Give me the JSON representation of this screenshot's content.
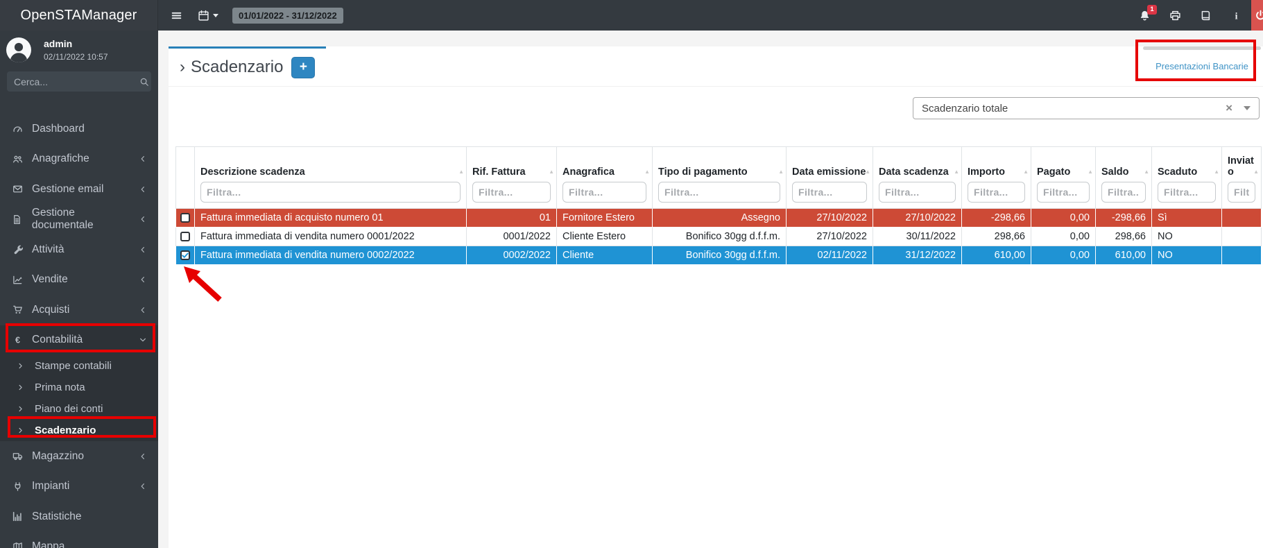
{
  "navbar": {
    "brand": "OpenSTAManager",
    "date_range": "01/01/2022 - 31/12/2022",
    "notifications_badge": "1"
  },
  "sidebar": {
    "user_name": "admin",
    "user_datetime": "02/11/2022 10:57",
    "search_placeholder": "Cerca...",
    "items": [
      {
        "id": "dashboard",
        "label": "Dashboard",
        "icon": "tachometer-icon"
      },
      {
        "id": "anagrafiche",
        "label": "Anagrafiche",
        "icon": "users-icon",
        "collapsible": true
      },
      {
        "id": "gestione-email",
        "label": "Gestione email",
        "icon": "envelope-icon",
        "collapsible": true
      },
      {
        "id": "gestione-documentale",
        "label": "Gestione documentale",
        "icon": "document-icon",
        "collapsible": true
      },
      {
        "id": "attivita",
        "label": "Attività",
        "icon": "wrench-icon",
        "collapsible": true
      },
      {
        "id": "vendite",
        "label": "Vendite",
        "icon": "chart-line-icon",
        "collapsible": true
      },
      {
        "id": "acquisti",
        "label": "Acquisti",
        "icon": "cart-icon",
        "collapsible": true
      },
      {
        "id": "contabilita",
        "label": "Contabilità",
        "icon": "euro-icon",
        "collapsible": true,
        "expanded": true,
        "children": [
          {
            "id": "stampe-contabili",
            "label": "Stampe contabili"
          },
          {
            "id": "prima-nota",
            "label": "Prima nota"
          },
          {
            "id": "piano-dei-conti",
            "label": "Piano dei conti"
          },
          {
            "id": "scadenzario",
            "label": "Scadenzario",
            "active": true
          }
        ]
      },
      {
        "id": "magazzino",
        "label": "Magazzino",
        "icon": "truck-icon",
        "collapsible": true
      },
      {
        "id": "impianti",
        "label": "Impianti",
        "icon": "plug-icon",
        "collapsible": true
      },
      {
        "id": "statistiche",
        "label": "Statistiche",
        "icon": "bar-chart-icon"
      },
      {
        "id": "mappa",
        "label": "Mappa",
        "icon": "map-icon"
      }
    ]
  },
  "main": {
    "title_prefix": "›",
    "title": "Scadenzario",
    "add_button_label": "+",
    "plugin_tab_label": "Presentazioni Bancarie",
    "filter_select_value": "Scadenzario totale",
    "filter_select_clear": "×"
  },
  "table": {
    "columns": [
      {
        "key": "select",
        "label": "",
        "filter": null,
        "align": "center"
      },
      {
        "key": "descrizione",
        "label": "Descrizione scadenza",
        "filter": "Filtra...",
        "align": "left"
      },
      {
        "key": "rif_fattura",
        "label": "Rif. Fattura",
        "filter": "Filtra...",
        "align": "right"
      },
      {
        "key": "anagrafica",
        "label": "Anagrafica",
        "filter": "Filtra...",
        "align": "left"
      },
      {
        "key": "tipo_pagamento",
        "label": "Tipo di pagamento",
        "filter": "Filtra...",
        "align": "right"
      },
      {
        "key": "data_emissione",
        "label": "Data emissione",
        "filter": "Filtra...",
        "align": "right"
      },
      {
        "key": "data_scadenza",
        "label": "Data scadenza",
        "filter": "Filtra...",
        "align": "right"
      },
      {
        "key": "importo",
        "label": "Importo",
        "filter": "Filtra...",
        "align": "right"
      },
      {
        "key": "pagato",
        "label": "Pagato",
        "filter": "Filtra...",
        "align": "right"
      },
      {
        "key": "saldo",
        "label": "Saldo",
        "filter": "Filtra...",
        "align": "right"
      },
      {
        "key": "scaduto",
        "label": "Scaduto",
        "filter": "Filtra...",
        "align": "left"
      },
      {
        "key": "inviato",
        "label": "Inviato",
        "filter": "Filtra...",
        "align": "left"
      }
    ],
    "rows": [
      {
        "style": "danger",
        "checked": false,
        "cells": {
          "descrizione": "Fattura immediata di acquisto numero 01",
          "rif_fattura": "01",
          "anagrafica": "Fornitore Estero",
          "tipo_pagamento": "Assegno",
          "data_emissione": "27/10/2022",
          "data_scadenza": "27/10/2022",
          "importo": "-298,66",
          "pagato": "0,00",
          "saldo": "-298,66",
          "scaduto": "Sì",
          "inviato": ""
        }
      },
      {
        "style": "default",
        "checked": false,
        "cells": {
          "descrizione": "Fattura immediata di vendita numero 0001/2022",
          "rif_fattura": "0001/2022",
          "anagrafica": "Cliente Estero",
          "tipo_pagamento": "Bonifico 30gg d.f.f.m.",
          "data_emissione": "27/10/2022",
          "data_scadenza": "30/11/2022",
          "importo": "298,66",
          "pagato": "0,00",
          "saldo": "298,66",
          "scaduto": "NO",
          "inviato": ""
        }
      },
      {
        "style": "info",
        "checked": true,
        "cells": {
          "descrizione": "Fattura immediata di vendita numero 0002/2022",
          "rif_fattura": "0002/2022",
          "anagrafica": "Cliente",
          "tipo_pagamento": "Bonifico 30gg d.f.f.m.",
          "data_emissione": "02/11/2022",
          "data_scadenza": "31/12/2022",
          "importo": "610,00",
          "pagato": "0,00",
          "saldo": "610,00",
          "scaduto": "NO",
          "inviato": ""
        }
      }
    ]
  },
  "colors": {
    "accent_blue": "#2e86c1",
    "tab_border_blue": "#2780b8",
    "row_danger": "#cd4a36",
    "row_info": "#1f93d4",
    "annotation_red": "#e60000",
    "link_blue": "#3f93c6",
    "navbar_dark": "#343a40"
  }
}
